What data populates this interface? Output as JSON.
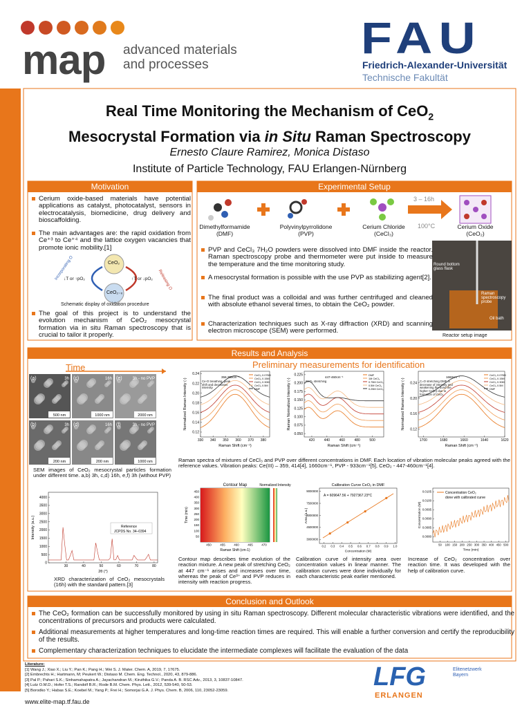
{
  "header": {
    "logo": "map",
    "tagline_1": "advanced materials",
    "tagline_2": "and processes",
    "fau_logo": "FAU",
    "university": "Friedrich-Alexander-Universität",
    "faculty": "Technische Fakultät"
  },
  "title": {
    "line1": "Real Time Monitoring the Mechanism of CeO",
    "line1_sub": "2",
    "line2_a": "Mesocrystal Formation via ",
    "line2_italic": "in Situ",
    "line2_b": " Raman Spectroscopy"
  },
  "authors": "Ernesto Claure Ramirez, Monica Distaso",
  "institute": "Institute of Particle Technology, FAU Erlangen-Nürnberg",
  "motivation": {
    "heading": "Motivation",
    "bullets": [
      "Cerium oxide-based materials have potential applications as catalyst, photocatalyst, sensors in electrocatalysis, biomedicine, drug delivery and bioscaffolding.",
      "The main advantages are: the rapid oxidation from Ce⁺³ to Ce⁺⁴ and the lattice oxygen vacancies that promote ionic mobility.[1]",
      "The goal of this project is to understand the evolution mechanism of CeO₂ mesocrystal formation via in situ Raman spectroscopy that is crucial to tailor it properly."
    ],
    "diagram": {
      "top": "CeO₂",
      "bottom": "CeO₂₋ₓ",
      "left_arrow": "Incorporating O",
      "left_cond": "↓T or ↑pO₂",
      "right_cond": "↑T or ↓pO₂",
      "right_arrow": "Releasing O"
    },
    "caption": "Schematic display of oxidation procedure"
  },
  "setup": {
    "heading": "Experimental Setup",
    "reagents": [
      {
        "name": "Dimethylformamide",
        "abbr": "(DMF)"
      },
      {
        "name": "Polyvinylpyrrolidone",
        "abbr": "(PVP)"
      },
      {
        "name": "Cerium Chloride",
        "abbr": "(CeCl₃)"
      },
      {
        "name": "Cerium Oxide",
        "abbr": "(CeO₂)"
      }
    ],
    "time": "3 – 16h",
    "temperature": "100°C",
    "bullets": [
      "PVP and CeCl₃ 7H₂O powders were dissolved into DMF inside the reactor. Raman spectroscopy probe and thermometer were put inside to measure the temperature  and the time monitoring study.",
      "A mesocrystal formation is possible with the use PVP as stabilizing agent[2].",
      "The final product was a colloidal and was further centrifuged and cleaned with absolute ethanol several times, to obtain the CeO₂ powder.",
      "Characterization techniques such as X-ray diffraction (XRD) and scanning electron microscope (SEM) were performed."
    ],
    "photo_labels": [
      "Round bottom glass flask",
      "Raman spectroscopy probe",
      "Oil bath"
    ],
    "photo_caption": "Reactor setup image"
  },
  "results": {
    "heading": "Results and Analysis",
    "time_label": "Time",
    "subtitle": "Preliminary measurements for identification",
    "sem_panels": [
      {
        "id": "(a)",
        "time": "3h",
        "scale": "500 nm"
      },
      {
        "id": "(c)",
        "time": "16h",
        "scale": "1000 nm"
      },
      {
        "id": "(e)",
        "time": "3h - no PVP",
        "scale": "2000 nm"
      },
      {
        "id": "(b)",
        "time": "3h",
        "scale": "200 nm"
      },
      {
        "id": "(d)",
        "time": "16h",
        "scale": "200 nm"
      },
      {
        "id": "(f)",
        "time": "3h - no PVP",
        "scale": "1000 nm"
      }
    ],
    "sem_caption": "SEM images of CeO₂ mesocrystal particles formation under different time.  a,b) 3h, c,d) 16h, e,f) 3h (without PVP)",
    "xrd": {
      "ylabel": "Intensity (a.u.)",
      "xlabel": "2θ (°)",
      "legend_1": "Reference",
      "legend_2": "JCPDS No. 34–0394",
      "xlim": [
        20,
        82
      ],
      "ylim": [
        0,
        4300
      ],
      "xticks": [
        30,
        40,
        50,
        60,
        70,
        80
      ],
      "yticks": [
        0,
        500,
        1000,
        1500,
        2000,
        2500,
        3000,
        3500,
        4000
      ],
      "caption": "XRD characterization of CeO₂ mesocrystals (16h) with the standard pattern.[3]"
    },
    "raman_charts": [
      {
        "ylabel": "Normalized Raman Intensity (-)",
        "xlabel": "Raman Shift (cm⁻¹)",
        "xlim": [
          330,
          385
        ],
        "ylim": [
          0.11,
          0.245
        ],
        "xticks": [
          330,
          340,
          350,
          360,
          370,
          380
        ],
        "yticks": [
          0.12,
          0.14,
          0.16,
          0.18,
          {
            "value": 0.2,
            "label": "0.20"
          },
          0.22,
          0.24
        ],
        "annotations": [
          "356-359cm⁻¹",
          "Ce-O breathing, peak shift and decreases intensity"
        ],
        "legend": [
          "CeCl₃ 0.075M",
          "CeCl₃ 0.15M",
          "CeCl₃ 0.30M",
          "CeCl₃ 0.5M",
          "DMF"
        ]
      },
      {
        "ylabel": "Raman Normalized Intensity (-)",
        "xlabel": "Raman Shift (cm⁻¹)",
        "xlim": [
          410,
          515
        ],
        "ylim": [
          0.04,
          0.235
        ],
        "xticks": [
          420,
          440,
          460,
          480,
          500
        ],
        "yticks": [
          {
            "value": 0.05,
            "label": "0.050"
          },
          {
            "value": 0.075,
            "label": "0.075"
          },
          {
            "value": 0.1,
            "label": "0.100"
          },
          0.125,
          {
            "value": 0.15,
            "label": "0.150"
          },
          0.175,
          {
            "value": 0.2,
            "label": "0.200"
          },
          0.225
        ],
        "annotations": [
          "447-460cm⁻¹",
          "CeO₂ stretching"
        ],
        "legend": [
          "DMF",
          "1M CeCl₃",
          "0.75M CeCl₃",
          "0.5M CeCl₃",
          "0.25M CeCl₃"
        ]
      },
      {
        "ylabel": "Normalized Raman Intensity (-)",
        "xlabel": "Raman Shift (cm⁻¹)",
        "xlim": [
          1705,
          1620
        ],
        "ylim": [
          0.1,
          0.27
        ],
        "xticks": [
          1700,
          1680,
          1660,
          1640,
          1620
        ],
        "yticks": [
          0.12,
          0.16,
          {
            "value": 0.2,
            "label": "0.20"
          },
          0.24
        ],
        "annotations": [
          "1660cm⁻¹",
          "C=O stretching DMF, a decrease of intensity and weakening the bond the higher Ce(III) due to formation of CeO₂"
        ],
        "legend": [
          "CeCl₃ 0.075M",
          "CeCl₃ 0.15M",
          "CeCl₃ 0.30M",
          "CeCl₃ 0.5M",
          "DMF"
        ]
      }
    ],
    "raman_caption": "Raman spectra of mixtures of CeCl₃ and PVP over different concentrations in DMF. Each location of vibration molecular peaks agreed with the reference values.  Vibration peaks: Ce(III) – 359, 414[4], 1660cm⁻¹, PVP - 933cm⁻¹[5], CeO₂ - 447-460cm⁻¹[4].",
    "contour": {
      "title": "Contour Map",
      "colorbar": "Normalized Intensity",
      "ylabel": "Time (min)",
      "xlabel": "Raman Shift (cm-1)",
      "xlim": [
        447,
        472
      ],
      "ylim": [
        0,
        480
      ],
      "xticks": [
        450,
        455,
        460,
        465,
        470
      ],
      "yticks": [
        50,
        100,
        150,
        200,
        250,
        300,
        350,
        400,
        450
      ],
      "caption": "Contour map describes time evolution of the reaction mixture. A new peak of stretching CeO₂ at 447 cm⁻¹ arises and increases over time, whereas the peak of Ce³⁺ and PVP reduces in intensity with reaction progress."
    },
    "calibration": {
      "title": "Calibration Curve CeO₂ in DMF",
      "equation": "A = 609647.56 + 7927367.23*C",
      "ylabel": "Area (a.u.)",
      "xlabel": "Concentration (M)",
      "xlim": [
        0.15,
        1.02
      ],
      "ylim": [
        2500000,
        9400000
      ],
      "xticks": [
        0.2,
        0.3,
        0.4,
        0.5,
        0.6,
        0.7,
        0.8,
        0.9,
        {
          "value": 1,
          "label": "1.0"
        }
      ],
      "yticks": [
        3000000,
        4500000,
        6000000,
        7500000,
        9000000
      ],
      "caption": "Calibration curve of intensity area over concentration values in linear manner. The calibration curves were done individually for each characteristic peak earlier mentioned."
    },
    "concentration": {
      "legend_1": "Concentration CeO₂",
      "legend_2": "done with calibrated curve",
      "ylabel": "Concentration (M)",
      "xlabel": "Time (min)",
      "xlim": [
        0,
        520
      ],
      "ylim": [
        0.0077,
        0.0107
      ],
      "xticks": [
        50,
        100,
        150,
        200,
        250,
        300,
        350,
        400,
        450,
        500
      ],
      "yticks": [
        {
          "value": 0.008,
          "label": "0.0080"
        },
        0.0085,
        {
          "value": 0.009,
          "label": "0.0090"
        },
        0.0095,
        {
          "value": 0.01,
          "label": "0.0100"
        },
        0.0105
      ],
      "caption": "Increase of CeO₂ concentration over reaction time. It was developed with the help of calibration curve."
    }
  },
  "conclusion": {
    "heading": "Conclusion and Outlook",
    "bullets": [
      "The CeO₂ formation can be successfully monitored by using in situ Raman spectroscopy. Different molecular characteristic vibrations were identified, and the concentrations of precursors and products were calculated.",
      "Additional measurements at higher temperatures and long-time reaction times are required. This will enable a further conversion and certify the reproducibility of the results.",
      "Complementary characterization techniques to elucidate the intermediate complexes will facilitate the evaluation of the data"
    ]
  },
  "literature": {
    "heading": "Literature:",
    "references": [
      "[1] Wang J.; Xiao X.; Liu Y.; Pan K.; Pang H.; Wei S. J. Mater. Chem. A, 2019, 7, 17675.",
      "[2] Embrechts H.; Hartmann, M; Peukert W.; Distaso M. Chem. Eng. Technol., 2020, 43, 879-886.",
      "[3] Pal P.; Pahari S.K.; Sinhamahapatra A.; Jayachandran M.; Kiruthika G.V.; Panda A. B. RSC Adv., 2013, 3, 10837-10847.",
      "[4] Lutz O.M.D.; Hofer T.S.; Randolf B.R.; Rode B.M. Chem. Phys. Lett., 2012, 539-540, 50-53.",
      "[5] Borodko Y.; Habas S.E.; Koebel M.; Yang P.; Frei H.; Somorjai G.A. J. Phys. Chem. B, 2006, 110, 23052-23059."
    ],
    "website": "www.elite-map.tf.fau.de"
  },
  "logos": {
    "lfg": "LFG",
    "erlangen": "ERLANGEN",
    "elite_1": "Elitenetzwerk",
    "elite_2": "Bayern"
  }
}
